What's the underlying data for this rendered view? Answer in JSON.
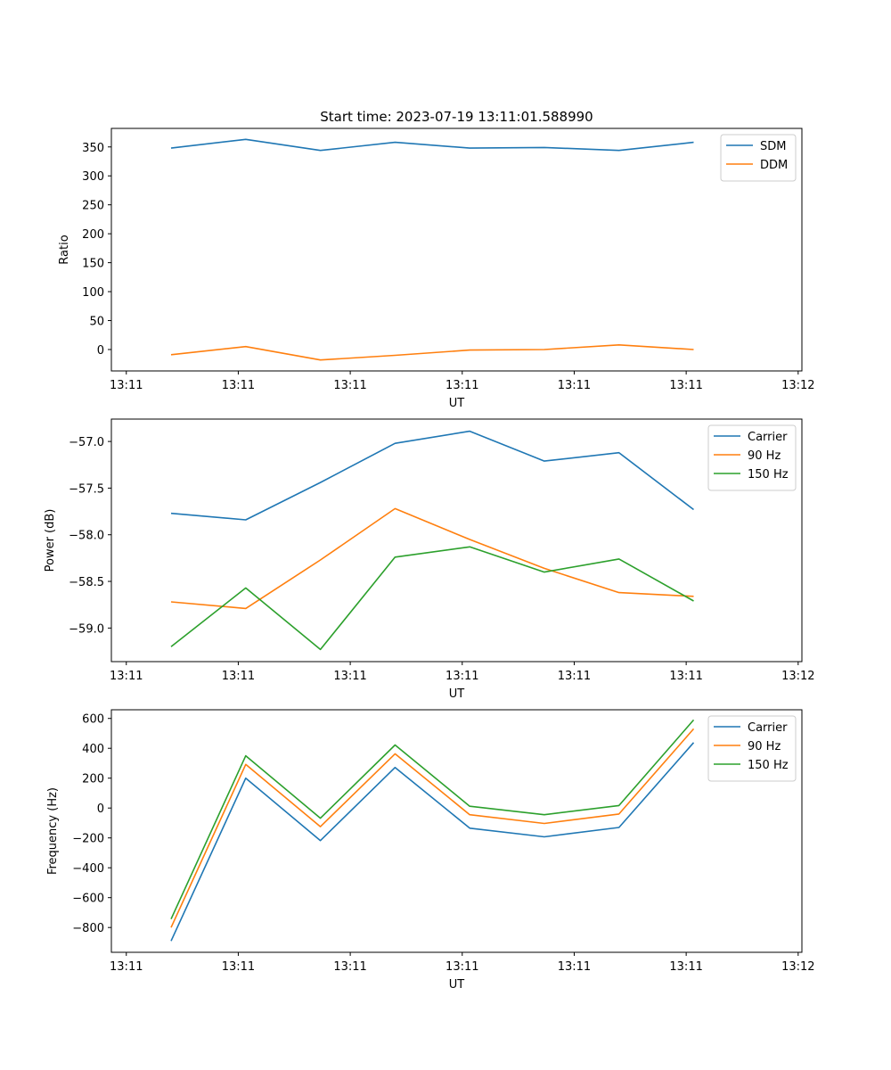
{
  "chart_data": [
    {
      "type": "line",
      "title": "Start time: 2023-07-19 13:11:01.588990",
      "xlabel": "UT",
      "ylabel": "Ratio",
      "x_tick_labels": [
        "13:11",
        "13:11",
        "13:11",
        "13:11",
        "13:11",
        "13:11",
        "13:12"
      ],
      "x_tick_positions": [
        -0.6,
        0.9,
        2.4,
        3.9,
        5.4,
        6.9,
        8.4
      ],
      "xlim": [
        -0.8,
        8.45
      ],
      "x": [
        0,
        1,
        2,
        3,
        4,
        5,
        6,
        7
      ],
      "yticks": [
        0,
        50,
        100,
        150,
        200,
        250,
        300,
        350
      ],
      "ylim": [
        -37,
        382
      ],
      "legend_position": "top-right",
      "series": [
        {
          "name": "SDM",
          "color": "#1f77b4",
          "values": [
            348,
            363,
            344,
            358,
            348,
            349,
            344,
            358
          ]
        },
        {
          "name": "DDM",
          "color": "#ff7f0e",
          "values": [
            -9,
            5,
            -18,
            -10,
            -1,
            0,
            8,
            0
          ]
        }
      ]
    },
    {
      "type": "line",
      "title": "",
      "xlabel": "UT",
      "ylabel": "Power (dB)",
      "x_tick_labels": [
        "13:11",
        "13:11",
        "13:11",
        "13:11",
        "13:11",
        "13:11",
        "13:12"
      ],
      "x_tick_positions": [
        -0.6,
        0.9,
        2.4,
        3.9,
        5.4,
        6.9,
        8.4
      ],
      "xlim": [
        -0.8,
        8.45
      ],
      "x": [
        0,
        1,
        2,
        3,
        4,
        5,
        6,
        7
      ],
      "yticks": [
        -59.0,
        -58.5,
        -58.0,
        -57.5,
        -57.0
      ],
      "ytick_labels": [
        "−59.0",
        "−58.5",
        "−58.0",
        "−57.5",
        "−57.0"
      ],
      "ylim": [
        -59.36,
        -56.76
      ],
      "legend_position": "top-right",
      "series": [
        {
          "name": "Carrier",
          "color": "#1f77b4",
          "values": [
            -57.77,
            -57.84,
            -57.44,
            -57.02,
            -56.89,
            -57.21,
            -57.12,
            -57.73
          ]
        },
        {
          "name": "90 Hz",
          "color": "#ff7f0e",
          "values": [
            -58.72,
            -58.79,
            -58.27,
            -57.72,
            -58.05,
            -58.36,
            -58.62,
            -58.66
          ]
        },
        {
          "name": "150 Hz",
          "color": "#2ca02c",
          "values": [
            -59.2,
            -58.57,
            -59.23,
            -58.24,
            -58.13,
            -58.4,
            -58.26,
            -58.71
          ]
        }
      ]
    },
    {
      "type": "line",
      "title": "",
      "xlabel": "UT",
      "ylabel": "Frequency (Hz)",
      "x_tick_labels": [
        "13:11",
        "13:11",
        "13:11",
        "13:11",
        "13:11",
        "13:11",
        "13:12"
      ],
      "x_tick_positions": [
        -0.6,
        0.9,
        2.4,
        3.9,
        5.4,
        6.9,
        8.4
      ],
      "xlim": [
        -0.8,
        8.45
      ],
      "x": [
        0,
        1,
        2,
        3,
        4,
        5,
        6,
        7
      ],
      "yticks": [
        -800,
        -600,
        -400,
        -200,
        0,
        200,
        400,
        600
      ],
      "ytick_labels": [
        "−800",
        "−600",
        "−400",
        "−200",
        "0",
        "200",
        "400",
        "600"
      ],
      "ylim": [
        -966,
        658
      ],
      "legend_position": "top-right",
      "series": [
        {
          "name": "Carrier",
          "color": "#1f77b4",
          "values": [
            -890,
            200,
            -218,
            272,
            -135,
            -193,
            -130,
            438
          ]
        },
        {
          "name": "90 Hz",
          "color": "#ff7f0e",
          "values": [
            -800,
            292,
            -125,
            363,
            -45,
            -103,
            -40,
            530
          ]
        },
        {
          "name": "150 Hz",
          "color": "#2ca02c",
          "values": [
            -743,
            350,
            -68,
            422,
            12,
            -45,
            17,
            590
          ]
        }
      ]
    }
  ]
}
